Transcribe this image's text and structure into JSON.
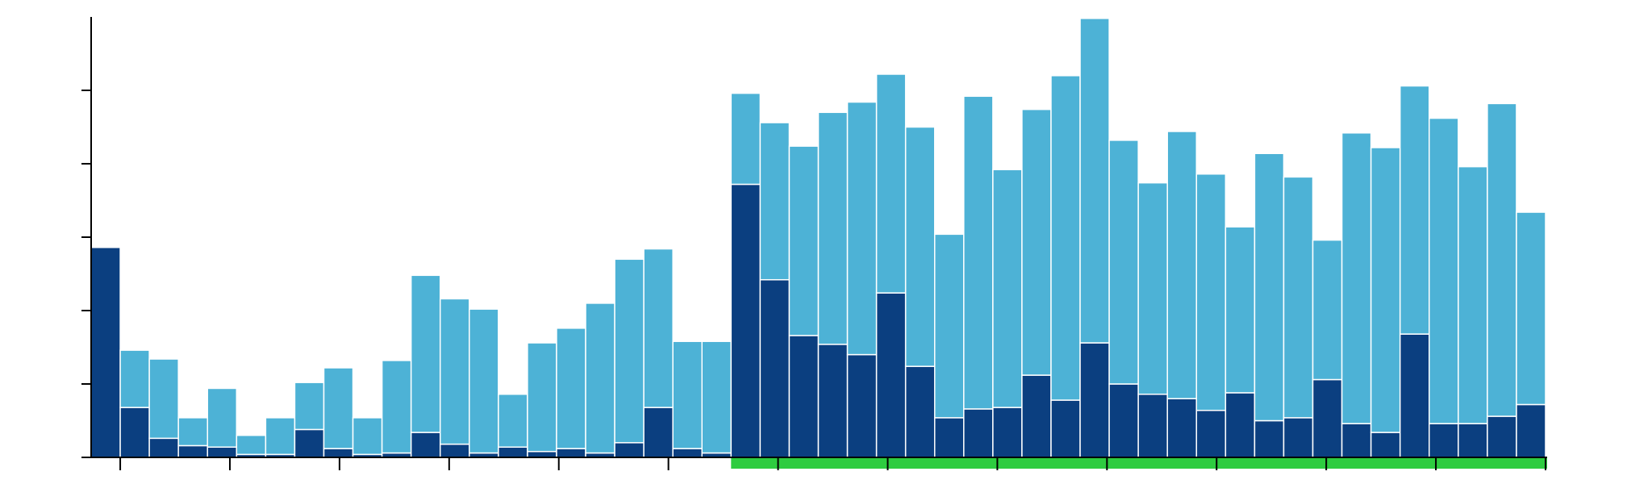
{
  "chart_data": {
    "type": "bar",
    "stacked": true,
    "title": "",
    "xlabel": "",
    "ylabel": "",
    "ylim": [
      0,
      3.0
    ],
    "yticks": [
      0,
      0.5,
      1.0,
      1.5,
      2.0,
      2.5
    ],
    "x_tick_count": 14,
    "highlight": {
      "start_index": 22,
      "end_index": 49,
      "color": "#2ecc40"
    },
    "colors": {
      "dark": "#0b3f80",
      "light": "#4db2d6",
      "axis": "#000000",
      "bar_edge": "#ffffff"
    },
    "series": [
      {
        "key": "dark",
        "values": [
          1.43,
          0.34,
          0.13,
          0.08,
          0.07,
          0.02,
          0.02,
          0.19,
          0.06,
          0.02,
          0.03,
          0.17,
          0.09,
          0.03,
          0.07,
          0.04,
          0.06,
          0.03,
          0.1,
          0.34,
          0.06,
          0.03,
          1.86,
          1.21,
          0.83,
          0.77,
          0.7,
          1.12,
          0.62,
          0.27,
          0.33,
          0.34,
          0.56,
          0.39,
          0.78,
          0.5,
          0.43,
          0.4,
          0.32,
          0.44,
          0.25,
          0.27,
          0.53,
          0.23,
          0.17,
          0.84,
          0.23,
          0.23,
          0.28,
          0.36
        ]
      },
      {
        "key": "light",
        "values": [
          0.0,
          0.39,
          0.54,
          0.19,
          0.4,
          0.13,
          0.25,
          0.32,
          0.55,
          0.25,
          0.63,
          1.07,
          0.99,
          0.98,
          0.36,
          0.74,
          0.82,
          1.02,
          1.25,
          1.08,
          0.73,
          0.76,
          0.62,
          1.07,
          1.29,
          1.58,
          1.72,
          1.49,
          1.63,
          1.25,
          2.13,
          1.62,
          1.81,
          2.21,
          2.21,
          1.66,
          1.44,
          1.82,
          1.61,
          1.13,
          1.82,
          1.64,
          0.95,
          1.98,
          1.94,
          1.69,
          2.08,
          1.75,
          2.13,
          1.31
        ]
      }
    ]
  }
}
